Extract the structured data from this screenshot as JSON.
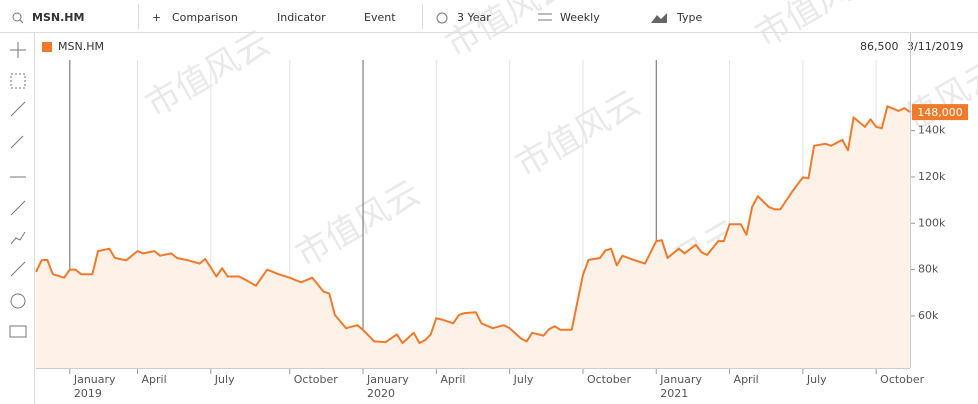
{
  "toolbar": {
    "symbol": "MSN.HM",
    "comparison": "Comparison",
    "indicator": "Indicator",
    "event": "Event",
    "range": "3 Year",
    "interval": "Weekly",
    "chart_type": "Type"
  },
  "watermark": "市值风云",
  "chart_data": {
    "type": "line",
    "legend": "MSN.HM",
    "info_value": "86,500",
    "info_date": "3/11/2019",
    "series": [
      {
        "name": "MSN.HM",
        "color": "#f07a2a",
        "area_color": "#fdf1e8",
        "x": [
          0,
          1,
          2,
          3,
          5,
          6,
          7,
          8,
          10,
          11,
          13,
          14,
          16,
          18,
          19,
          21,
          22,
          24,
          25,
          27,
          29,
          30,
          32,
          33,
          34,
          36,
          37,
          39,
          41,
          43,
          45,
          47,
          49,
          51,
          52,
          53,
          55,
          57,
          58,
          60,
          62,
          64,
          65,
          67,
          68,
          69,
          70,
          71,
          72,
          74,
          75,
          76,
          78,
          79,
          81,
          83,
          84,
          86,
          87,
          88,
          90,
          91,
          92,
          93,
          95,
          97,
          98,
          100,
          101,
          102,
          103,
          104,
          106,
          108,
          110,
          111,
          112,
          114,
          115,
          117,
          118,
          119,
          121,
          122,
          123,
          125,
          126,
          127,
          128,
          130,
          131,
          132,
          134,
          135,
          136,
          137,
          138,
          140,
          141,
          143,
          144,
          145,
          147,
          148,
          149,
          150,
          151,
          153,
          154,
          155
        ],
        "values": [
          79000,
          84000,
          84200,
          78000,
          76500,
          80000,
          80000,
          78000,
          78000,
          88000,
          89000,
          85000,
          84000,
          88000,
          87000,
          88000,
          86000,
          87000,
          85000,
          84000,
          82600,
          84600,
          77000,
          80600,
          77000,
          77000,
          75800,
          73000,
          80000,
          78000,
          76500,
          74500,
          76500,
          70500,
          69700,
          60400,
          54700,
          56000,
          54000,
          49000,
          48700,
          52000,
          48300,
          52700,
          48300,
          49500,
          52000,
          59000,
          58400,
          56800,
          60400,
          61200,
          61600,
          56800,
          54700,
          56000,
          54700,
          50300,
          49000,
          52700,
          51500,
          54300,
          55500,
          54000,
          54000,
          77800,
          84200,
          85000,
          88300,
          89000,
          81800,
          86000,
          84200,
          82600,
          92300,
          92700,
          85000,
          89000,
          87000,
          90700,
          87500,
          86300,
          92300,
          92300,
          99600,
          99600,
          95000,
          107000,
          111700,
          107000,
          106000,
          106000,
          113300,
          116600,
          119800,
          119400,
          133500,
          134300,
          133500,
          136000,
          131500,
          145700,
          141600,
          144900,
          141600,
          141000,
          150500,
          148500,
          149700,
          148000
        ]
      }
    ],
    "last_price": {
      "value": 148000,
      "label": "148,000"
    },
    "xlim": [
      0,
      155
    ],
    "xticks": [
      {
        "value": 6,
        "label": "January",
        "year": "2019"
      },
      {
        "value": 18,
        "label": "April"
      },
      {
        "value": 31,
        "label": "July"
      },
      {
        "value": 45,
        "label": "October"
      },
      {
        "value": 58,
        "label": "January",
        "year": "2020"
      },
      {
        "value": 71,
        "label": "April"
      },
      {
        "value": 84,
        "label": "July"
      },
      {
        "value": 97,
        "label": "October"
      },
      {
        "value": 110,
        "label": "January",
        "year": "2021"
      },
      {
        "value": 123,
        "label": "April"
      },
      {
        "value": 136,
        "label": "July"
      },
      {
        "value": 149,
        "label": "October"
      }
    ],
    "ylim": [
      37500,
      170500
    ],
    "yticks": [
      {
        "value": 60000,
        "label": "60k"
      },
      {
        "value": 80000,
        "label": "80k"
      },
      {
        "value": 100000,
        "label": "100k"
      },
      {
        "value": 120000,
        "label": "120k"
      },
      {
        "value": 140000,
        "label": "140k"
      }
    ],
    "grid": true
  }
}
